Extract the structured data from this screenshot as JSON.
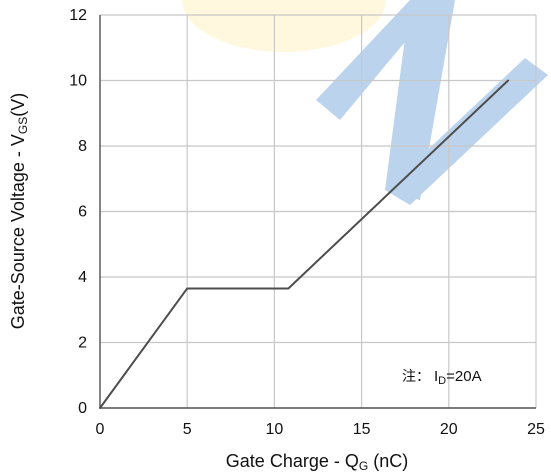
{
  "colors": {
    "background": "#ffffff",
    "grid": "#c8c8c8",
    "axis": "#555555",
    "curve": "#4d4d4d",
    "watermark_blue": "#a9c7e8",
    "watermark_yellow": "#fff6d6"
  },
  "chart_data": {
    "type": "line",
    "xlabel": {
      "main": "Gate Charge - Q",
      "sub": "G",
      "tail": " (nC)"
    },
    "ylabel": {
      "main": "Gate-Source Voltage - V",
      "sub": "GS",
      "tail": "(V)"
    },
    "xlim": [
      0,
      25
    ],
    "ylim": [
      0,
      12
    ],
    "x_ticks": [
      "0",
      "5",
      "10",
      "15",
      "20",
      "25"
    ],
    "y_ticks": [
      "0",
      "2",
      "4",
      "6",
      "8",
      "10",
      "12"
    ],
    "grid": true,
    "series": [
      {
        "x": [
          0,
          5.0,
          10.8,
          23.4
        ],
        "y": [
          0,
          3.65,
          3.65,
          10.0
        ]
      }
    ],
    "annotation": {
      "prefix": "注：",
      "main": "I",
      "sub": "D",
      "tail": "=20A"
    }
  }
}
